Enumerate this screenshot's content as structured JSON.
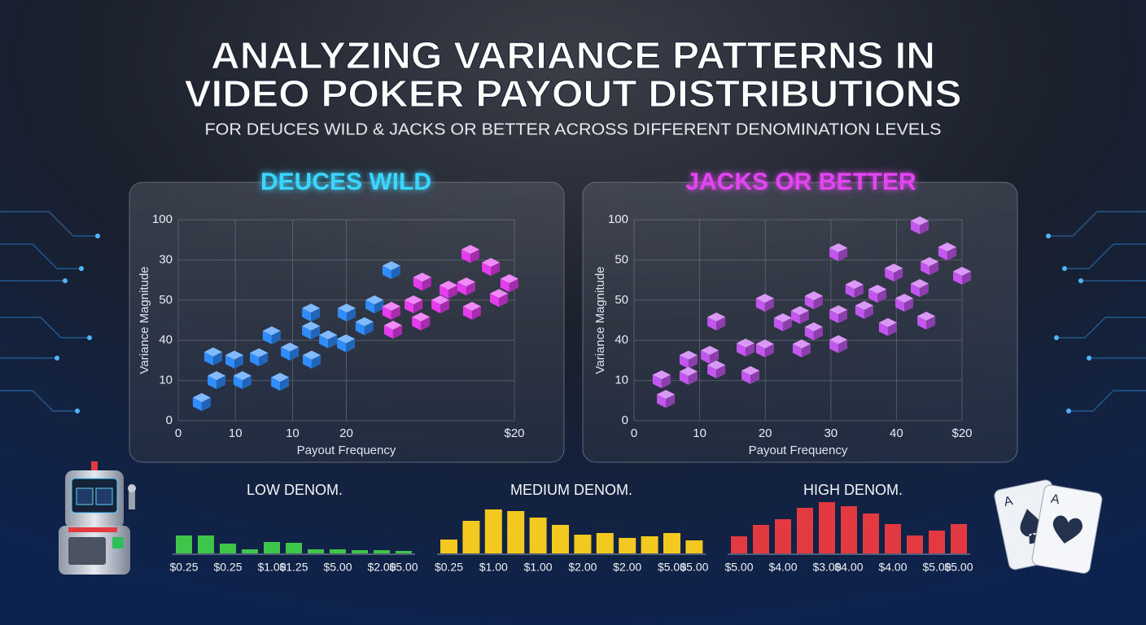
{
  "header": {
    "title_lines": [
      "ANALYZING VARIANCE PATTERNS IN",
      "VIDEO POKER PAYOUT DISTRIBUTIONS"
    ],
    "subtitle": "FOR DEUCES WILD & JACKS OR BETTER ACROSS DIFFERENT DENOMINATION LEVELS"
  },
  "decor": {
    "card_ranks": [
      "A",
      "A"
    ]
  },
  "chart_data": [
    {
      "type": "scatter",
      "title": "DEUCES WILD",
      "title_color": "#3ad6ff",
      "x_label": "Payout Frequency",
      "y_label": "Variance Magnitude",
      "xlim": [
        0,
        100
      ],
      "ylim": [
        0,
        100
      ],
      "xticks": [
        0,
        {
          "value": 17,
          "label": "10"
        },
        {
          "value": 34,
          "label": "10"
        },
        {
          "value": 50,
          "label": "20"
        },
        {
          "value": 100,
          "label": "$20"
        }
      ],
      "yticks": [
        0,
        {
          "value": 20,
          "label": "10"
        },
        {
          "value": 40,
          "label": "40"
        },
        {
          "value": 60,
          "label": "50"
        },
        {
          "value": 80,
          "label": "30"
        },
        100
      ],
      "grid": true,
      "series": [
        {
          "color": "#2f8dff",
          "x": [
            7.0,
            10.4,
            11.4,
            16.7,
            19.1,
            24.0,
            27.8,
            30.3,
            33.2,
            39.5,
            39.5,
            39.7,
            44.6,
            49.9,
            50.1,
            55.4,
            58.4,
            63.4
          ],
          "values": [
            9.3,
            32.0,
            20.2,
            30.4,
            20.2,
            31.6,
            42.5,
            19.4,
            34.4,
            53.8,
            44.9,
            30.4,
            40.5,
            38.5,
            53.8,
            47.0,
            57.9,
            74.9
          ]
        },
        {
          "color": "#e63cf0",
          "x": [
            63.4,
            63.9,
            70.0,
            72.2,
            72.6,
            78.0,
            80.4,
            85.7,
            86.9,
            87.4,
            93.0,
            95.4,
            98.5
          ],
          "values": [
            54.7,
            45.3,
            57.9,
            49.4,
            69.2,
            57.9,
            65.2,
            66.8,
            83.0,
            54.7,
            76.5,
            61.1,
            68.4
          ]
        }
      ]
    },
    {
      "type": "scatter",
      "title": "JACKS OR BETTER",
      "title_color": "#e445f2",
      "x_label": "Payout Frequency",
      "y_label": "Variance Magnitude",
      "xlim": [
        0,
        100
      ],
      "ylim": [
        0,
        100
      ],
      "xticks": [
        0,
        {
          "value": 20,
          "label": "10"
        },
        {
          "value": 40,
          "label": "20"
        },
        {
          "value": 60,
          "label": "30"
        },
        {
          "value": 80,
          "label": "40"
        },
        {
          "value": 100,
          "label": "$20"
        }
      ],
      "yticks": [
        0,
        {
          "value": 20,
          "label": "10"
        },
        {
          "value": 40,
          "label": "40"
        },
        {
          "value": 60,
          "label": "50"
        },
        {
          "value": 80,
          "label": "50"
        },
        100
      ],
      "grid": true,
      "series": [
        {
          "color": "#c456f0",
          "x": [
            8.4,
            9.7,
            16.6,
            16.6,
            23.1,
            25.1,
            25.1,
            34.0,
            35.5,
            39.9,
            39.9,
            45.4,
            50.6,
            51.1,
            54.8,
            54.8,
            62.3,
            62.3,
            62.3,
            67.2,
            70.2,
            74.2,
            77.4,
            79.2,
            82.4,
            87.1,
            89.1,
            87.1,
            90.1,
            95.5,
            100
          ],
          "values": [
            20.6,
            10.9,
            30.4,
            22.3,
            32.8,
            25.5,
            49.4,
            36.4,
            22.7,
            58.7,
            36.0,
            49.0,
            52.6,
            36.0,
            44.5,
            59.9,
            53.0,
            38.1,
            83.8,
            65.6,
            55.1,
            63.2,
            46.6,
            73.7,
            58.7,
            66.0,
            49.8,
            97.2,
            76.9,
            84.2,
            72.1
          ]
        }
      ]
    },
    {
      "type": "bar",
      "title": "LOW DENOM.",
      "color": "#3ec64b",
      "categories": [
        "$0.25",
        null,
        "$0.25",
        null,
        "$1.00",
        "$1.25",
        null,
        "$5.00",
        null,
        "$2.00",
        "$5.00"
      ],
      "values": [
        22,
        22,
        12,
        5,
        14,
        13,
        5,
        5,
        4,
        4,
        3
      ]
    },
    {
      "type": "bar",
      "title": "MEDIUM DENOM.",
      "color": "#f3c81f",
      "categories": [
        "$0.25",
        null,
        "$1.00",
        null,
        "$1.00",
        null,
        "$2.00",
        null,
        "$2.00",
        null,
        "$5.00",
        "$5.00"
      ],
      "values": [
        17,
        40,
        54,
        52,
        44,
        35,
        23,
        25,
        19,
        21,
        25,
        16
      ]
    },
    {
      "type": "bar",
      "title": "HIGH DENOM.",
      "color": "#e23a40",
      "categories": [
        "$5.00",
        null,
        "$4.00",
        null,
        "$3.00",
        "$4.00",
        null,
        "$4.00",
        null,
        "$5.00",
        "$5.00"
      ],
      "values": [
        21,
        35,
        42,
        56,
        63,
        58,
        49,
        36,
        22,
        28,
        36
      ]
    }
  ]
}
